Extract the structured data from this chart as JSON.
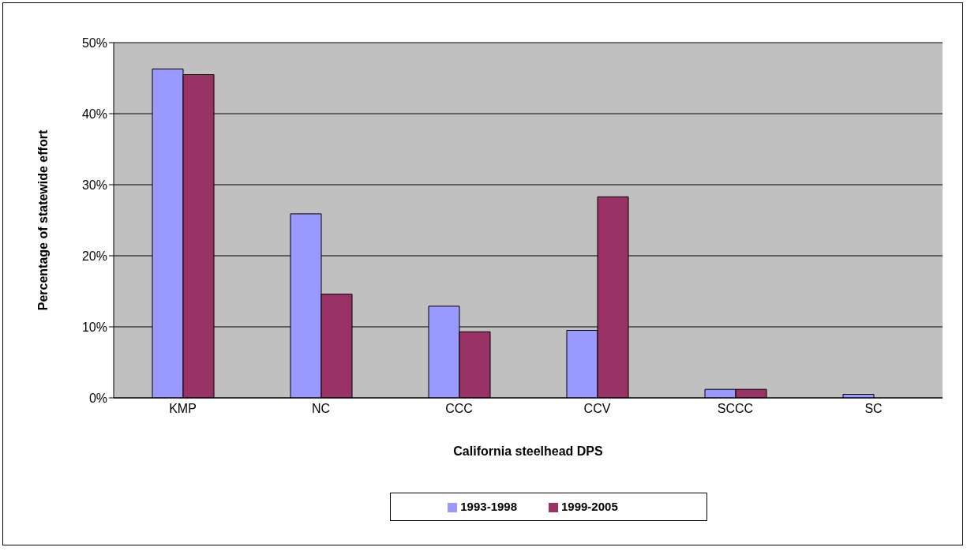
{
  "chart_data": {
    "type": "bar",
    "xlabel": "California steelhead DPS",
    "ylabel": "Percentage of statewide effort",
    "categories": [
      "KMP",
      "NC",
      "CCC",
      "CCV",
      "SCCC",
      "SC"
    ],
    "series": [
      {
        "name": "1993-1998",
        "color": "#9999ff",
        "values": [
          46.3,
          25.9,
          12.9,
          9.5,
          1.2,
          0.5
        ]
      },
      {
        "name": "1999-2005",
        "color": "#993366",
        "values": [
          45.5,
          14.6,
          9.3,
          28.3,
          1.2,
          0
        ]
      }
    ],
    "ylim": [
      0,
      50
    ],
    "yticks": [
      {
        "value": 0,
        "label": "0%"
      },
      {
        "value": 10,
        "label": "10%"
      },
      {
        "value": 20,
        "label": "20%"
      },
      {
        "value": 30,
        "label": "30%"
      },
      {
        "value": 40,
        "label": "40%"
      },
      {
        "value": 50,
        "label": "50%"
      }
    ],
    "grid": "y",
    "legend": "bottom"
  }
}
